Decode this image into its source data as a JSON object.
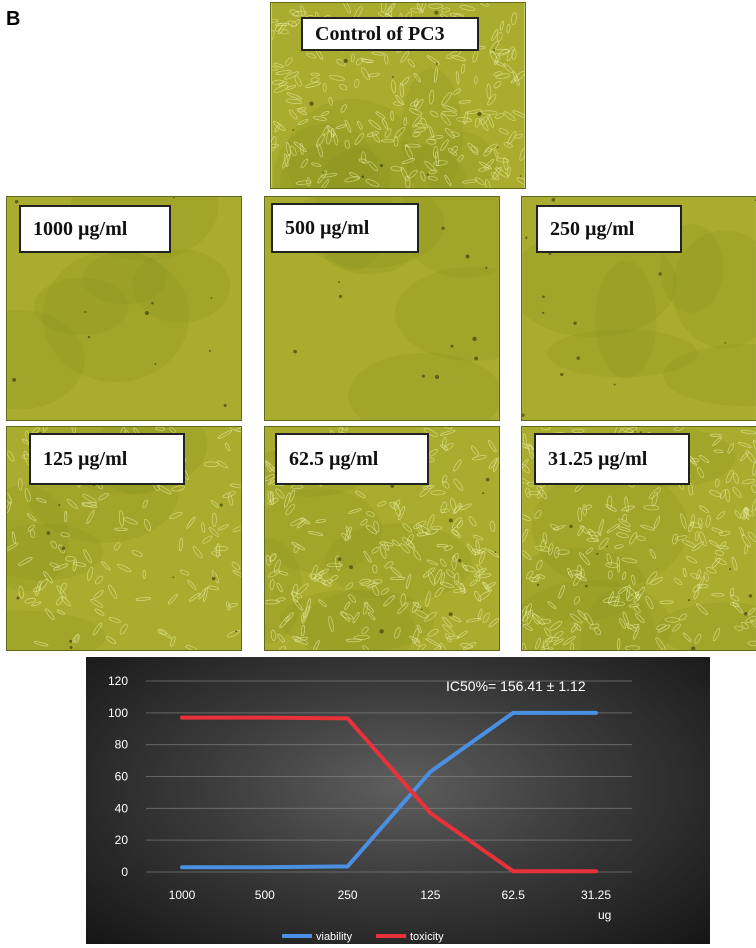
{
  "panel_letter": "B",
  "colors": {
    "culture_bg": "#a9ac2e",
    "viability": "#4a90e2",
    "toxicity": "#e8323a"
  },
  "images": [
    {
      "label": "Control of PC3",
      "cell_density": "high"
    },
    {
      "label": "1000 µg/ml",
      "cell_density": "none"
    },
    {
      "label": "500 µg/ml",
      "cell_density": "none"
    },
    {
      "label": "250 µg/ml",
      "cell_density": "none"
    },
    {
      "label": "125 µg/ml",
      "cell_density": "medium"
    },
    {
      "label": "62.5 µg/ml",
      "cell_density": "high"
    },
    {
      "label": "31.25 µg/ml",
      "cell_density": "high"
    }
  ],
  "chart_data": {
    "type": "line",
    "categories": [
      "1000",
      "500",
      "250",
      "125",
      "62.5",
      "31.25"
    ],
    "series": [
      {
        "name": "viability",
        "values": [
          3,
          3,
          3.5,
          63,
          100,
          100
        ]
      },
      {
        "name": "toxicity",
        "values": [
          97,
          97,
          96.5,
          37,
          0.5,
          0.5
        ]
      }
    ],
    "xlabel": "ug",
    "ylabel": "",
    "ylim": [
      0,
      120
    ],
    "yticks": [
      "0",
      "20",
      "40",
      "60",
      "80",
      "100",
      "120"
    ],
    "annotation": "IC50%= 156.41 ± 1.12",
    "grid": true,
    "legend": "bottom"
  }
}
